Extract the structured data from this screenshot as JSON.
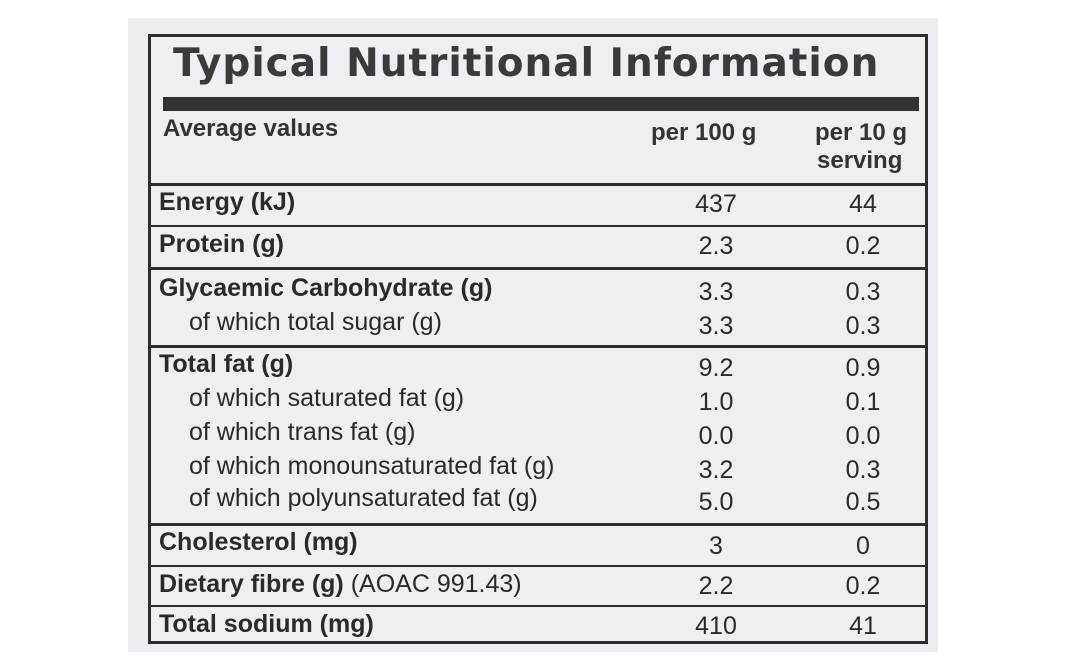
{
  "title": "Typical Nutritional Information",
  "headers": {
    "average": "Average values",
    "per100": "per 100 g",
    "per10_line1": "per 10 g",
    "per10_line2": "serving"
  },
  "rows": [
    {
      "name": "Energy (kJ)",
      "v100": "437",
      "v10": "44"
    },
    {
      "name": "Protein (g)",
      "v100": "2.3",
      "v10": "0.2"
    },
    {
      "name": "Glycaemic Carbohydrate (g)",
      "v100": "3.3",
      "v10": "0.3"
    },
    {
      "name": "of which total sugar (g)",
      "v100": "3.3",
      "v10": "0.3"
    },
    {
      "name": "Total fat (g)",
      "v100": "9.2",
      "v10": "0.9"
    },
    {
      "name": "of which saturated fat (g)",
      "v100": "1.0",
      "v10": "0.1"
    },
    {
      "name": "of which trans fat (g)",
      "v100": "0.0",
      "v10": "0.0"
    },
    {
      "name": "of which monounsaturated fat (g)",
      "v100": "3.2",
      "v10": "0.3"
    },
    {
      "name": "of which polyunsaturated fat (g)",
      "v100": "5.0",
      "v10": "0.5"
    },
    {
      "name": "Cholesterol (mg)",
      "v100": "3",
      "v10": "0"
    },
    {
      "name": "Dietary fibre (g)",
      "name_suffix": " (AOAC 991.43)",
      "v100": "2.2",
      "v10": "0.2"
    },
    {
      "name": "Total sodium (mg)",
      "v100": "410",
      "v10": "41"
    }
  ]
}
